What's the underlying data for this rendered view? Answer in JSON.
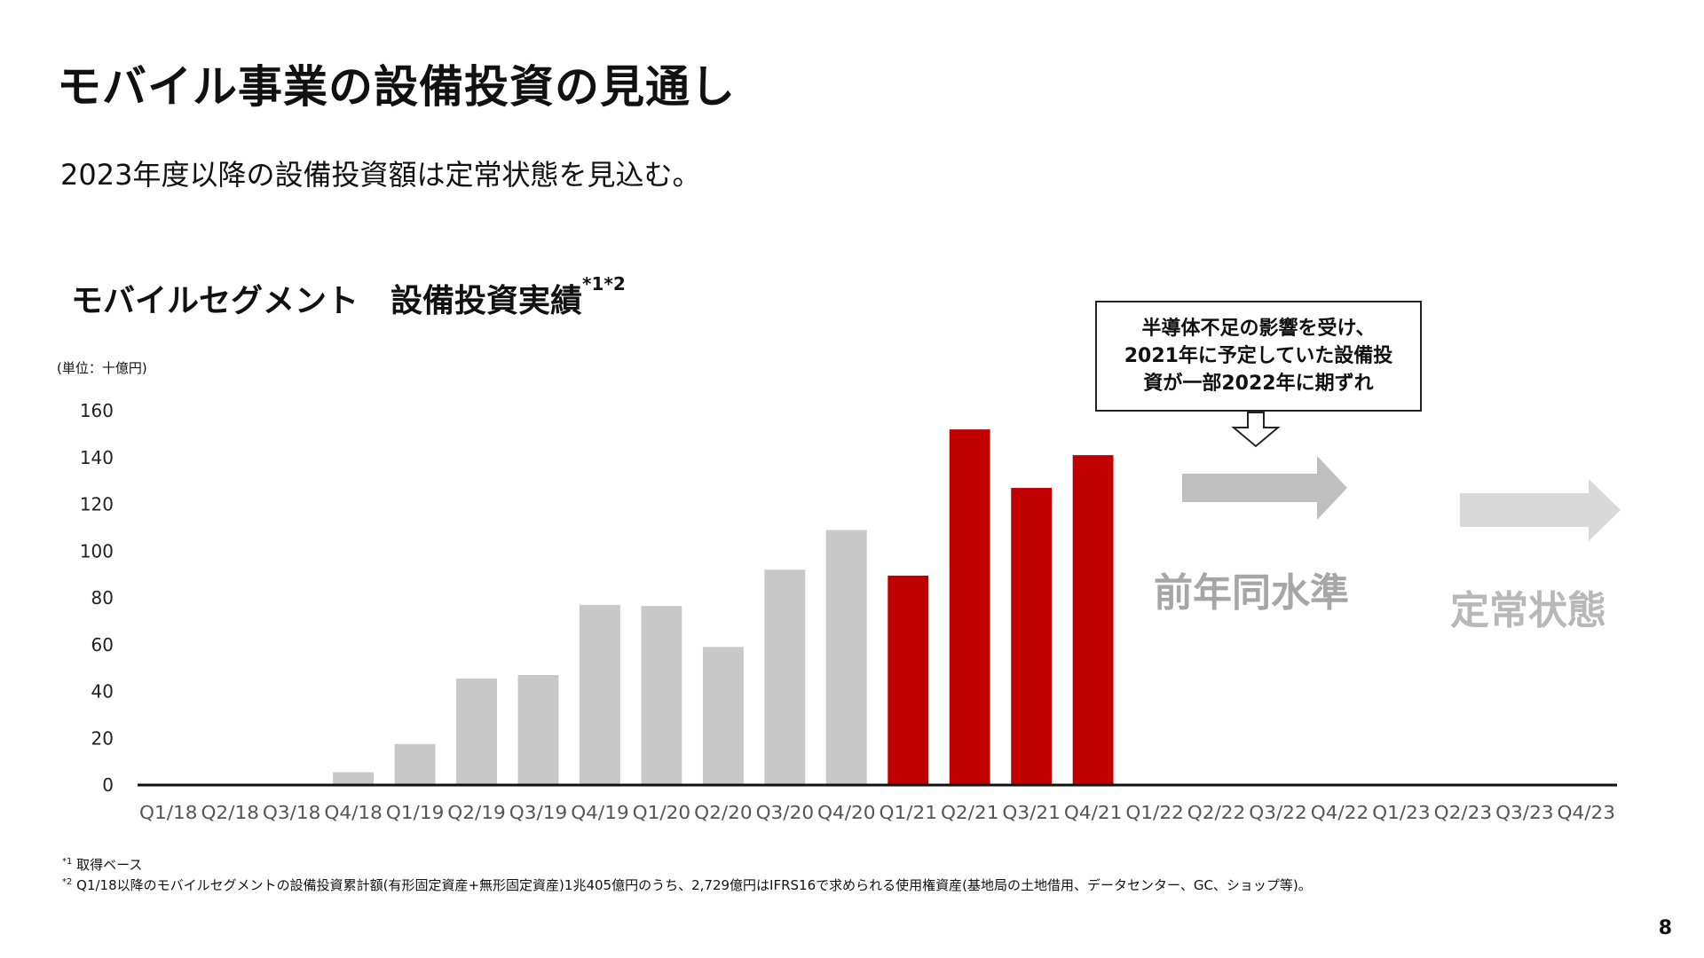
{
  "title": "モバイル事業の設備投資の見通し",
  "subtitle": "2023年度以降の設備投資額は定常状態を見込む。",
  "chart_title": "モバイルセグメント　設備投資実績",
  "chart_title_sup": "*1*2",
  "unit": "(単位：十億円)",
  "callout": {
    "lines": [
      "半導体不足の影響を受け、",
      "2021年に予定していた設備投",
      "資が一部2022年に期ずれ"
    ]
  },
  "phases": {
    "p1": "前年同水準",
    "p2": "定常状態"
  },
  "colors": {
    "bar_default": "#c8c8c8",
    "bar_highlight": "#c00000",
    "arrow_1": "#bfbfbf",
    "arrow_2": "#d9d9d9",
    "axis": "#111111"
  },
  "notes": {
    "n1_mark": "*1",
    "n1_text": " 取得ベース",
    "n2_mark": "*2",
    "n2_text": " Q1/18以降のモバイルセグメントの設備投資累計額(有形固定資産+無形固定資産)1兆405億円のうち、2,729億円はIFRS16で求められる使用権資産(基地局の土地借用、データセンター、GC、ショップ等)。"
  },
  "page_number": "8",
  "chart_data": {
    "type": "bar",
    "categories": [
      "Q1/18",
      "Q2/18",
      "Q3/18",
      "Q4/18",
      "Q1/19",
      "Q2/19",
      "Q3/19",
      "Q4/19",
      "Q1/20",
      "Q2/20",
      "Q3/20",
      "Q4/20",
      "Q1/21",
      "Q2/21",
      "Q3/21",
      "Q4/21",
      "Q1/22",
      "Q2/22",
      "Q3/22",
      "Q4/22",
      "Q1/23",
      "Q2/23",
      "Q3/23",
      "Q4/23"
    ],
    "values": [
      0.3,
      0.3,
      0.5,
      5.5,
      17.5,
      45.5,
      47,
      77,
      76.5,
      59,
      92,
      109,
      89.5,
      152,
      127,
      141,
      null,
      null,
      null,
      null,
      null,
      null,
      null,
      null
    ],
    "highlight_categories": [
      "Q1/21",
      "Q2/21",
      "Q3/21",
      "Q4/21"
    ],
    "ylim": [
      0,
      160
    ],
    "yticks": [
      0,
      20,
      40,
      60,
      80,
      100,
      120,
      140,
      160
    ],
    "grid": false,
    "title": "モバイルセグメント　設備投資実績*1*2",
    "xlabel": "",
    "ylabel": ""
  }
}
